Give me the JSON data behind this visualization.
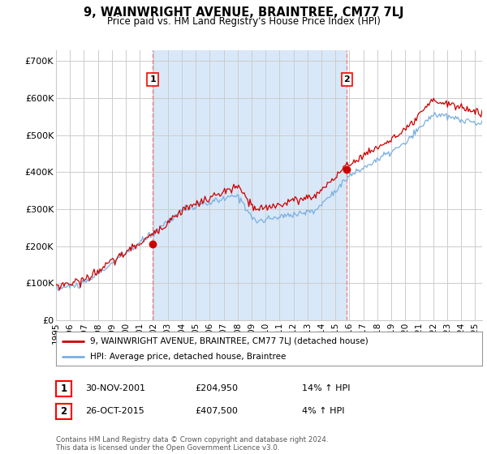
{
  "title": "9, WAINWRIGHT AVENUE, BRAINTREE, CM77 7LJ",
  "subtitle": "Price paid vs. HM Land Registry's House Price Index (HPI)",
  "ylabel_ticks": [
    "£0",
    "£100K",
    "£200K",
    "£300K",
    "£400K",
    "£500K",
    "£600K",
    "£700K"
  ],
  "ytick_vals": [
    0,
    100000,
    200000,
    300000,
    400000,
    500000,
    600000,
    700000
  ],
  "ylim": [
    0,
    730000
  ],
  "xlim_start": 1995.0,
  "xlim_end": 2025.5,
  "vline1_x": 2001.92,
  "vline2_x": 2015.82,
  "trans1_price": 204950,
  "trans2_price": 407500,
  "legend_line1": "9, WAINWRIGHT AVENUE, BRAINTREE, CM77 7LJ (detached house)",
  "legend_line2": "HPI: Average price, detached house, Braintree",
  "ann1_label": "1",
  "ann1_date": "30-NOV-2001",
  "ann1_price": "£204,950",
  "ann1_hpi": "14% ↑ HPI",
  "ann2_label": "2",
  "ann2_date": "26-OCT-2015",
  "ann2_price": "£407,500",
  "ann2_hpi": "4% ↑ HPI",
  "footer": "Contains HM Land Registry data © Crown copyright and database right 2024.\nThis data is licensed under the Open Government Licence v3.0.",
  "line_color_red": "#CC0000",
  "line_color_blue": "#7AAFE0",
  "shade_color": "#D8E8F8",
  "vline_color": "#EE8888",
  "background_color": "#FFFFFF",
  "grid_color": "#CCCCCC",
  "xtick_years": [
    1995,
    1996,
    1997,
    1998,
    1999,
    2000,
    2001,
    2002,
    2003,
    2004,
    2005,
    2006,
    2007,
    2008,
    2009,
    2010,
    2011,
    2012,
    2013,
    2014,
    2015,
    2016,
    2017,
    2018,
    2019,
    2020,
    2021,
    2022,
    2023,
    2024,
    2025
  ]
}
